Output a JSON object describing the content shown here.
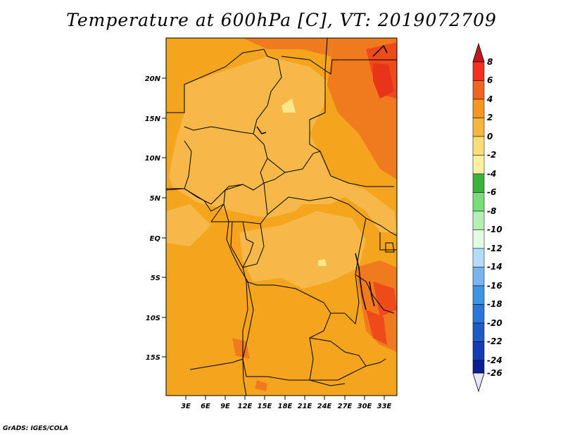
{
  "title": "Temperature at 600hPa [C], VT: 2019072709",
  "credit": "GrADS: IGES/COLA",
  "map": {
    "lat_labels": [
      "20N",
      "15N",
      "10N",
      "5N",
      "EQ",
      "5S",
      "10S",
      "15S"
    ],
    "lon_labels": [
      "3E",
      "6E",
      "9E",
      "12E",
      "15E",
      "18E",
      "21E",
      "24E",
      "27E",
      "30E",
      "33E"
    ]
  },
  "colorbar": {
    "labels": [
      "8",
      "6",
      "4",
      "2",
      "0",
      "-2",
      "-4",
      "-6",
      "-8",
      "-10",
      "-12",
      "-14",
      "-16",
      "-18",
      "-20",
      "-22",
      "-24",
      "-26"
    ],
    "colors": {
      "above_8": "#c8141e",
      "6_8": "#f0321e",
      "4_6": "#f0641e",
      "2_4": "#f5961e",
      "0_2": "#f5b43c",
      "m2_0": "#fade78",
      "m4_m2": "#fff0a0",
      "m6_m4": "#3cb43c",
      "m8_m6": "#78dc78",
      "m10_m8": "#b4f0b4",
      "m12_m10": "#e1ffe1",
      "m14_m12": "#b4dcff",
      "m16_m14": "#78b4f0",
      "m18_m16": "#3c96e6",
      "m20_m18": "#2878dc",
      "m22_m20": "#1e5ac8",
      "m24_m22": "#143cb4",
      "m26_m24": "#0a1e96",
      "below_m26": "#0a0a6e",
      "lowest_arrow": "#e6e6ff"
    }
  }
}
